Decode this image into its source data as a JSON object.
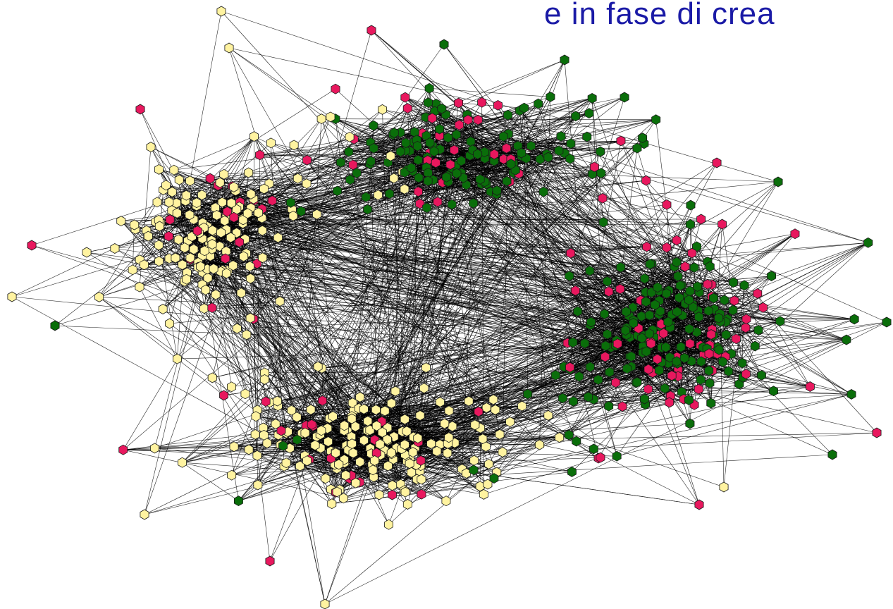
{
  "title_fragment": "e in fase di crea",
  "colors": {
    "title": "#1a1aa6",
    "edge": "#000000",
    "node_outline": "#1a1a1a",
    "node_yellow": "#fff3a0",
    "node_green": "#0a6e0a",
    "node_pink": "#e8185e"
  },
  "legend": [],
  "network": {
    "type": "directed-graph",
    "node_shape": "hexagon",
    "node_groups": [
      "yellow",
      "green",
      "pink"
    ]
  }
}
